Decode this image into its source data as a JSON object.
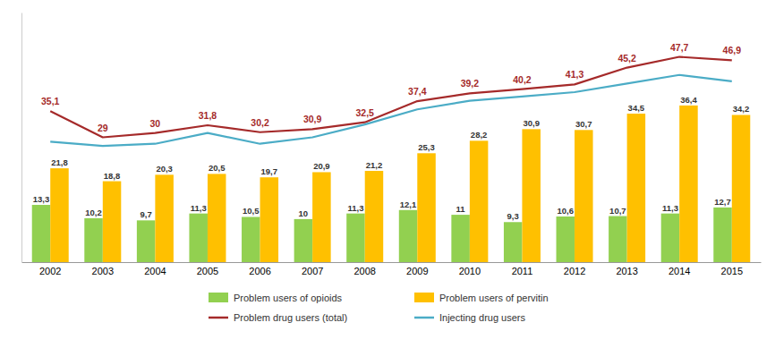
{
  "chart_data": {
    "type": "bar",
    "categories": [
      "2002",
      "2003",
      "2004",
      "2005",
      "2006",
      "2007",
      "2008",
      "2009",
      "2010",
      "2011",
      "2012",
      "2013",
      "2014",
      "2015"
    ],
    "series": [
      {
        "name": "Problem users of opioids",
        "type": "bar",
        "color": "#92d050",
        "data_labels": true,
        "values": [
          13.3,
          10.2,
          9.7,
          11.3,
          10.5,
          10.0,
          11.3,
          12.1,
          11.0,
          9.3,
          10.6,
          10.7,
          11.3,
          12.7
        ],
        "value_labels": [
          "13,3",
          "10,2",
          "9,7",
          "11,3",
          "10,5",
          "10",
          "11,3",
          "12,1",
          "11",
          "9,3",
          "10,6",
          "10,7",
          "11,3",
          "12,7"
        ]
      },
      {
        "name": "Problem users of pervitin",
        "type": "bar",
        "color": "#ffc000",
        "data_labels": true,
        "values": [
          21.8,
          18.8,
          20.3,
          20.5,
          19.7,
          20.9,
          21.2,
          25.3,
          28.2,
          30.9,
          30.7,
          34.5,
          36.4,
          34.2
        ],
        "value_labels": [
          "21,8",
          "18,8",
          "20,3",
          "20,5",
          "19,7",
          "20,9",
          "21,2",
          "25,3",
          "28,2",
          "30,9",
          "30,7",
          "34,5",
          "36,4",
          "34,2"
        ]
      },
      {
        "name": "Problem drug users (total)",
        "type": "line",
        "color": "#a52a2a",
        "data_labels": true,
        "values": [
          35.1,
          29.0,
          30.0,
          31.8,
          30.2,
          30.9,
          32.5,
          37.4,
          39.2,
          40.2,
          41.3,
          45.2,
          47.7,
          46.9
        ],
        "value_labels": [
          "35,1",
          "29",
          "30",
          "31,8",
          "30,2",
          "30,9",
          "32,5",
          "37,4",
          "39,2",
          "40,2",
          "41,3",
          "45,2",
          "47,7",
          "46,9"
        ]
      },
      {
        "name": "Injecting drug users",
        "type": "line",
        "color": "#4bacc6",
        "data_labels": false,
        "values": [
          28.0,
          27.0,
          27.5,
          30.0,
          27.5,
          29.0,
          32.0,
          35.5,
          37.5,
          38.5,
          39.5,
          41.5,
          43.5,
          42.0
        ]
      }
    ],
    "ylim": [
      0,
      58
    ],
    "tick_labels": "x",
    "grid": false,
    "legend": "bottom"
  }
}
